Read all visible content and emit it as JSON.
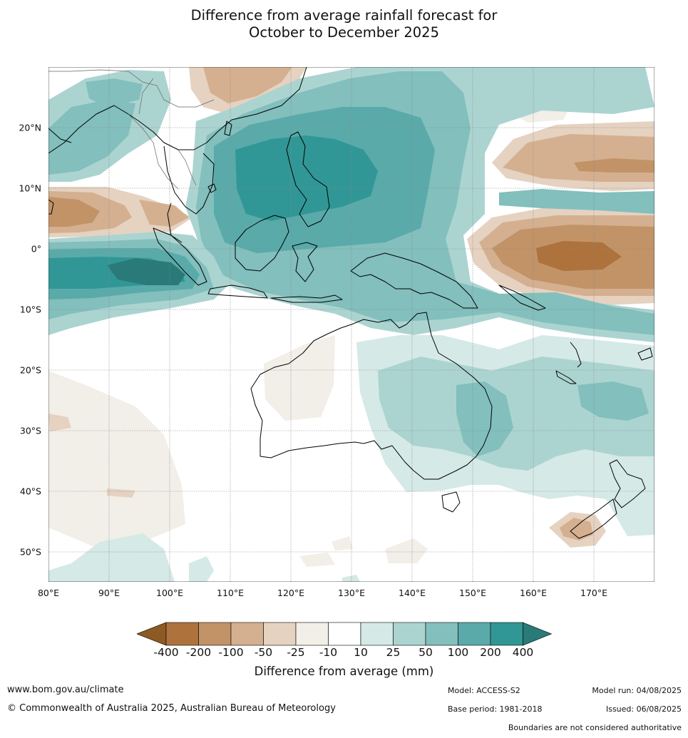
{
  "title_line1": "Difference from average rainfall forecast for",
  "title_line2": "October to December 2025",
  "lat_labels": [
    "20°N",
    "10°N",
    "0°",
    "10°S",
    "20°S",
    "30°S",
    "40°S",
    "50°S"
  ],
  "lon_labels": [
    "80°E",
    "90°E",
    "100°E",
    "110°E",
    "120°E",
    "130°E",
    "140°E",
    "150°E",
    "160°E",
    "170°E"
  ],
  "legend": {
    "title": "Difference from average (mm)",
    "tick_labels": [
      "-400",
      "-200",
      "-100",
      "-50",
      "-25",
      "-10",
      "10",
      "25",
      "50",
      "100",
      "200",
      "400"
    ],
    "colors": {
      "lt-400": "#8e5a24",
      "-400to-200": "#ae723c",
      "-200to-100": "#c29367",
      "-100to-50": "#d4b090",
      "-50to-25": "#e5d2c0",
      "-25to-10": "#f2eee8",
      "-10to10": "#ffffff",
      "10to25": "#d5e9e7",
      "25to50": "#abd4d1",
      "50to100": "#82bfbd",
      "100to200": "#5aaaaa",
      "200to400": "#319796",
      "gt400": "#2a7a79"
    }
  },
  "footer": {
    "url": "www.bom.gov.au/climate",
    "copyright": "© Commonwealth of Australia 2025, Australian Bureau of Meteorology",
    "model": "Model: ACCESS-S2",
    "model_run": "Model run: 04/08/2025",
    "base_period": "Base period: 1981-2018",
    "issued": "Issued: 06/08/2025",
    "disclaimer": "Boundaries are not considered authoritative"
  }
}
